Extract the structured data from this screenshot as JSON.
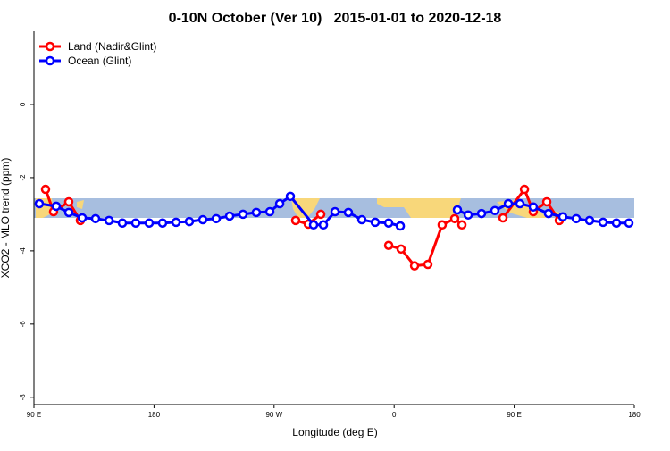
{
  "chart_data": {
    "type": "line",
    "title": "0-10N October (Ver 10)   2015-01-01 to 2020-12-18",
    "xlabel": "Longitude (deg E)",
    "ylabel": "XCO2 - MLO trend (ppm)",
    "xlim": [
      90,
      540
    ],
    "xticks": [
      {
        "value": 90,
        "label": "90 E"
      },
      {
        "value": 180,
        "label": "180"
      },
      {
        "value": 270,
        "label": "90 W"
      },
      {
        "value": 360,
        "label": "0"
      },
      {
        "value": 450,
        "label": "90 E"
      },
      {
        "value": 540,
        "label": "180"
      }
    ],
    "ylim": [
      -8.2,
      2.0
    ],
    "yticks": [
      0,
      -2,
      -4,
      -6,
      -8
    ],
    "legend": "top-left",
    "series": [
      {
        "name": "Land (Nadir&Glint)",
        "color": "#ff0000",
        "x": [
          98.7,
          104.7,
          116.1,
          124.8,
          null,
          286.2,
          295.6,
          305.0,
          null,
          355.9,
          365.2,
          375.3,
          385.3,
          396.0,
          405.4,
          410.8,
          null,
          441.6,
          457.7,
          464.3,
          474.4,
          483.8
        ],
        "values": [
          -2.32,
          -2.93,
          -2.66,
          -3.17,
          null,
          -3.17,
          -3.27,
          -3.0,
          null,
          -3.85,
          -3.95,
          -4.41,
          -4.37,
          -3.29,
          -3.12,
          -3.29,
          null,
          -3.1,
          -2.32,
          -2.93,
          -2.66,
          -3.17
        ]
      },
      {
        "name": "Ocean (Glint)",
        "color": "#0000ff",
        "x": [
          94.0,
          106.7,
          116.1,
          126.2,
          136.2,
          146.3,
          156.3,
          166.3,
          176.4,
          186.4,
          196.5,
          206.5,
          216.6,
          226.6,
          236.7,
          246.7,
          256.7,
          266.8,
          274.2,
          282.2,
          299.6,
          307.0,
          315.7,
          325.7,
          335.8,
          345.8,
          355.9,
          364.6,
          null,
          407.4,
          415.5,
          425.5,
          435.5,
          445.6,
          454.3,
          464.3,
          475.7,
          486.4,
          496.5,
          506.5,
          516.6,
          526.6,
          536.0
        ],
        "values": [
          -2.71,
          -2.78,
          -2.95,
          -3.1,
          -3.12,
          -3.17,
          -3.24,
          -3.24,
          -3.24,
          -3.24,
          -3.22,
          -3.2,
          -3.15,
          -3.12,
          -3.05,
          -3.0,
          -2.95,
          -2.93,
          -2.71,
          -2.51,
          -3.29,
          -3.29,
          -2.93,
          -2.95,
          -3.15,
          -3.22,
          -3.24,
          -3.32,
          null,
          -2.88,
          -3.02,
          -2.98,
          -2.9,
          -2.71,
          -2.71,
          -2.8,
          -2.98,
          -3.07,
          -3.12,
          -3.17,
          -3.22,
          -3.24,
          -3.24
        ]
      }
    ]
  }
}
